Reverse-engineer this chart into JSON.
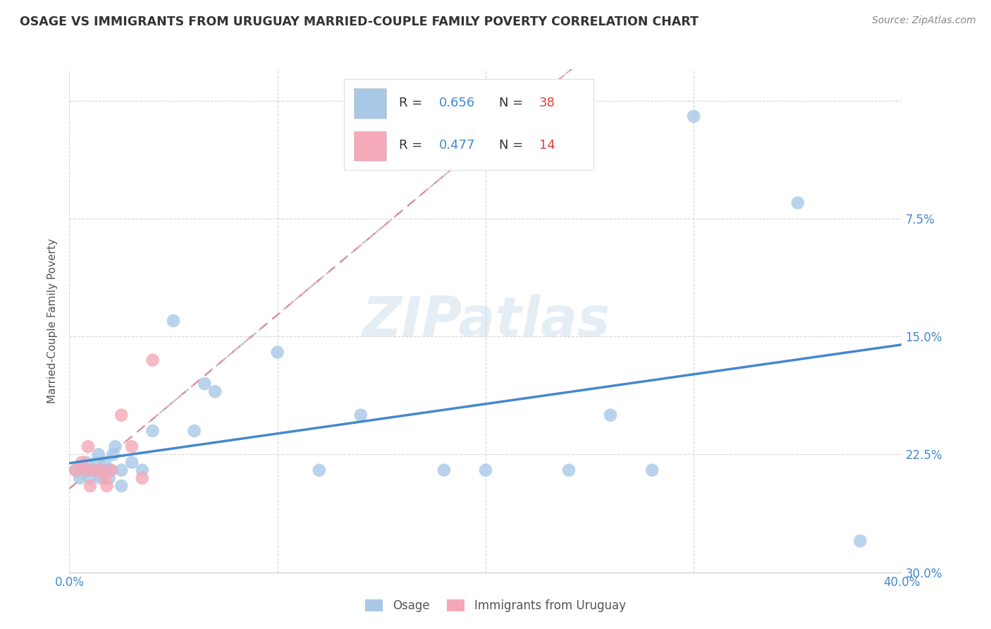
{
  "title": "OSAGE VS IMMIGRANTS FROM URUGUAY MARRIED-COUPLE FAMILY POVERTY CORRELATION CHART",
  "source": "Source: ZipAtlas.com",
  "ylabel": "Married-Couple Family Poverty",
  "xlim": [
    0.0,
    0.4
  ],
  "ylim": [
    0.0,
    0.32
  ],
  "xticks": [
    0.0,
    0.1,
    0.2,
    0.3,
    0.4
  ],
  "yticks": [
    0.0,
    0.075,
    0.15,
    0.225,
    0.3
  ],
  "xticklabels": [
    "0.0%",
    "",
    "",
    "",
    "40.0%"
  ],
  "yticklabels_right": [
    "30.0%",
    "22.5%",
    "15.0%",
    "7.5%",
    ""
  ],
  "osage_R": 0.656,
  "osage_N": 38,
  "uruguay_R": 0.477,
  "uruguay_N": 14,
  "osage_color": "#a8c8e8",
  "uruguay_color": "#f4a8b8",
  "osage_line_color": "#4488cc",
  "uruguay_line_color": "#c0c0c8",
  "uruguay_trendline_color": "#e07090",
  "watermark": "ZIPatlas",
  "osage_x": [
    0.003,
    0.005,
    0.007,
    0.008,
    0.009,
    0.01,
    0.011,
    0.012,
    0.013,
    0.014,
    0.015,
    0.016,
    0.017,
    0.018,
    0.019,
    0.02,
    0.021,
    0.022,
    0.025,
    0.025,
    0.03,
    0.035,
    0.04,
    0.05,
    0.06,
    0.065,
    0.07,
    0.1,
    0.12,
    0.14,
    0.18,
    0.2,
    0.24,
    0.26,
    0.28,
    0.3,
    0.35,
    0.38
  ],
  "osage_y": [
    0.065,
    0.06,
    0.065,
    0.07,
    0.065,
    0.06,
    0.065,
    0.065,
    0.07,
    0.075,
    0.06,
    0.065,
    0.07,
    0.065,
    0.06,
    0.065,
    0.075,
    0.08,
    0.065,
    0.055,
    0.07,
    0.065,
    0.09,
    0.16,
    0.09,
    0.12,
    0.115,
    0.14,
    0.065,
    0.1,
    0.065,
    0.065,
    0.065,
    0.1,
    0.065,
    0.29,
    0.235,
    0.02
  ],
  "uruguay_x": [
    0.003,
    0.006,
    0.008,
    0.009,
    0.01,
    0.012,
    0.015,
    0.017,
    0.018,
    0.02,
    0.025,
    0.03,
    0.035,
    0.04
  ],
  "uruguay_y": [
    0.065,
    0.07,
    0.065,
    0.08,
    0.055,
    0.065,
    0.065,
    0.06,
    0.055,
    0.065,
    0.1,
    0.08,
    0.06,
    0.135
  ],
  "background_color": "#ffffff",
  "grid_color": "#cccccc",
  "tick_color": "#4488cc",
  "title_color": "#333333"
}
